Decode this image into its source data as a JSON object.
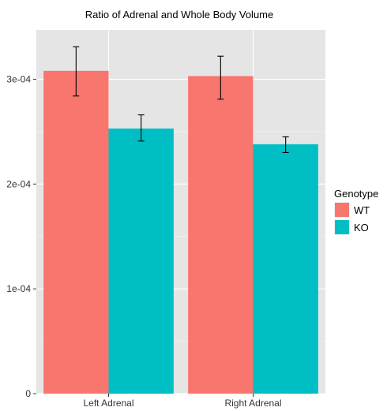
{
  "chart_data": {
    "type": "bar",
    "title": "Ratio of Adrenal and Whole Body Volume",
    "xlabel": "",
    "ylabel": "",
    "categories": [
      "Left Adrenal",
      "Right Adrenal"
    ],
    "series": [
      {
        "name": "WT",
        "color": "#F8766D",
        "values": [
          0.000308,
          0.000303
        ],
        "error": [
          [
            0.000284,
            0.000331
          ],
          [
            0.000281,
            0.000322
          ]
        ]
      },
      {
        "name": "KO",
        "color": "#00BFC4",
        "values": [
          0.000253,
          0.000238
        ],
        "error": [
          [
            0.000241,
            0.000266
          ],
          [
            0.00023,
            0.000245
          ]
        ]
      }
    ],
    "ylim": [
      0,
      0.000347
    ],
    "yticks": [
      0,
      0.0001,
      0.0002,
      0.0003
    ],
    "ytick_labels": [
      "0",
      "1e-04",
      "2e-04",
      "3e-04"
    ],
    "grid": true,
    "panel_background": "#E5E5E5",
    "grid_color": "#FFFFFF",
    "legend": {
      "title": "Genotype",
      "position": "right",
      "entries": [
        "WT",
        "KO"
      ]
    }
  }
}
